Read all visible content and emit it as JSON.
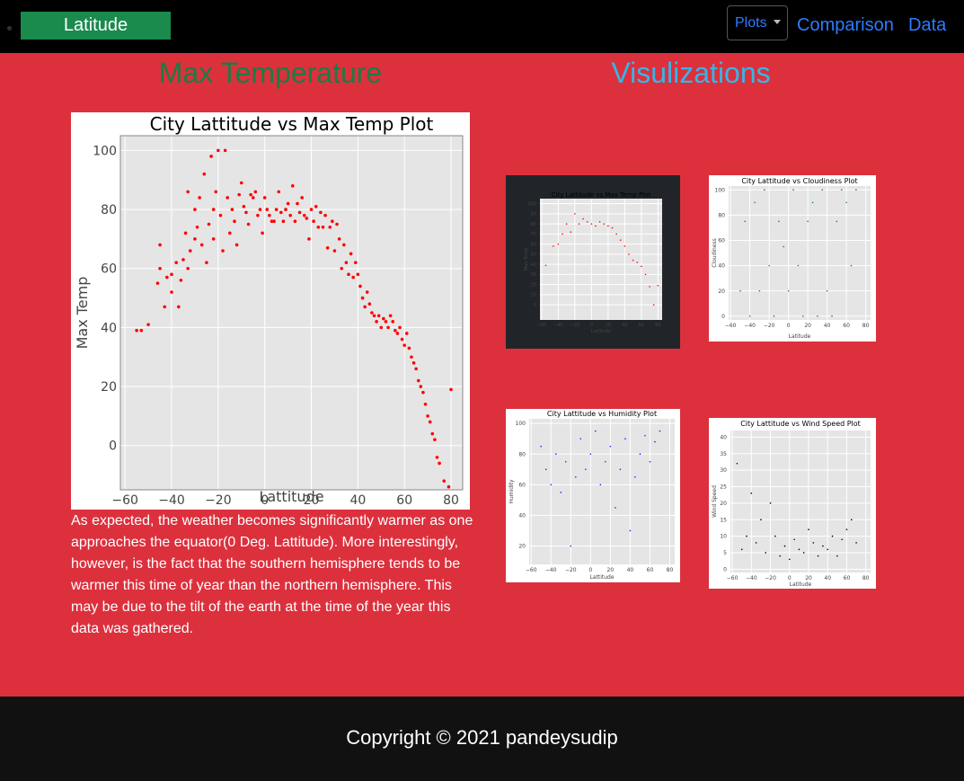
{
  "navbar": {
    "brand": "Latitude",
    "plots_menu": "Plots",
    "links": [
      "Comparison",
      "Data"
    ]
  },
  "main": {
    "heading": "Max Temperature",
    "description": "As expected, the weather becomes significantly warmer as one approaches the equator(0 Deg. Lattitude). More interestingly, however, is the fact that the southern hemisphere tends to be warmer this time of year than the northern hemisphere. This may be due to the tilt of the earth at the time of the year this data was gathered."
  },
  "visualizations": {
    "heading": "Visulizations"
  },
  "footer": {
    "copyright": "Copyright © 2021 pandeysudip"
  },
  "colors": {
    "page_bg": "#dc303d",
    "nav_bg": "#000000",
    "brand_bg": "#1b8a4d",
    "link": "#2c7cff",
    "main_heading": "#1f7a43",
    "viz_heading": "#33b7e8",
    "footer_bg": "#111111"
  },
  "chart_data": [
    {
      "type": "scatter",
      "title": "City Lattitude vs Max Temp Plot",
      "xlabel": "Lattitude",
      "ylabel": "Max Temp",
      "xlim": [
        -62,
        85
      ],
      "ylim": [
        -15,
        105
      ],
      "xticks": [
        -60,
        -40,
        -20,
        0,
        20,
        40,
        60,
        80
      ],
      "yticks": [
        0,
        20,
        40,
        60,
        80,
        100
      ],
      "xtick_labels": [
        "−60",
        "−40",
        "−20",
        "0",
        "20",
        "40",
        "60",
        "80"
      ],
      "ytick_labels": [
        "0",
        "20",
        "40",
        "60",
        "80",
        "100"
      ],
      "grid": true,
      "point_color": "#ff0000",
      "x": [
        -55,
        -53,
        -50,
        -46,
        -45,
        -45,
        -43,
        -42,
        -40,
        -40,
        -38,
        -37,
        -36,
        -35,
        -34,
        -33,
        -33,
        -32,
        -30,
        -30,
        -29,
        -28,
        -27,
        -26,
        -25,
        -24,
        -23,
        -22,
        -22,
        -21,
        -20,
        -19,
        -18,
        -17,
        -16,
        -15,
        -14,
        -13,
        -12,
        -11,
        -10,
        -9,
        -8,
        -7,
        -6,
        -5,
        -4,
        -3,
        -2,
        -1,
        0,
        1,
        2,
        3,
        4,
        5,
        6,
        7,
        8,
        9,
        10,
        11,
        12,
        13,
        14,
        15,
        16,
        17,
        18,
        19,
        20,
        21,
        22,
        23,
        24,
        25,
        26,
        27,
        28,
        29,
        30,
        31,
        32,
        33,
        34,
        35,
        36,
        37,
        38,
        39,
        40,
        41,
        42,
        43,
        44,
        45,
        46,
        47,
        48,
        49,
        50,
        51,
        52,
        53,
        54,
        55,
        56,
        57,
        58,
        59,
        60,
        61,
        62,
        63,
        64,
        65,
        66,
        67,
        68,
        69,
        70,
        71,
        72,
        73,
        74,
        75,
        77,
        79,
        80
      ],
      "y": [
        39,
        39,
        41,
        55,
        60,
        68,
        47,
        57,
        52,
        58,
        62,
        47,
        56,
        63,
        72,
        86,
        60,
        66,
        80,
        70,
        74,
        84,
        68,
        92,
        62,
        75,
        98,
        70,
        80,
        86,
        100,
        78,
        66,
        100,
        84,
        72,
        80,
        76,
        68,
        85,
        89,
        81,
        79,
        75,
        85,
        84,
        86,
        78,
        80,
        72,
        84,
        80,
        78,
        76,
        76,
        80,
        86,
        79,
        76,
        80,
        82,
        78,
        88,
        76,
        82,
        79,
        84,
        78,
        77,
        70,
        80,
        76,
        81,
        74,
        79,
        74,
        78,
        67,
        74,
        76,
        66,
        75,
        70,
        60,
        68,
        62,
        58,
        65,
        57,
        62,
        58,
        54,
        50,
        47,
        52,
        48,
        45,
        44,
        42,
        44,
        40,
        43,
        42,
        40,
        44,
        42,
        39,
        38,
        40,
        36,
        34,
        38,
        33,
        30,
        28,
        26,
        22,
        20,
        18,
        14,
        10,
        8,
        4,
        2,
        -4,
        -6,
        -12,
        -14,
        19
      ],
      "note": "Representative point sample read from the plot"
    },
    {
      "type": "scatter",
      "title": "City Lattitude vs Max Temp Plot",
      "xlabel": "Lattitude",
      "ylabel": "Max Temp",
      "xlim": [
        -62,
        85
      ],
      "ylim": [
        -15,
        105
      ],
      "xticks": [
        -60,
        -40,
        -20,
        0,
        20,
        40,
        60,
        80
      ],
      "yticks": [
        0,
        10,
        20,
        30,
        40,
        50,
        60,
        70,
        80,
        90,
        100
      ],
      "xtick_labels": [
        "−60",
        "−40",
        "−20",
        "0",
        "20",
        "40",
        "60",
        "80"
      ],
      "ytick_labels": [
        "0",
        "10",
        "20",
        "30",
        "40",
        "50",
        "60",
        "70",
        "80",
        "90",
        "100"
      ],
      "point_color": "#ff0000",
      "x": [
        -55,
        -46,
        -40,
        -35,
        -30,
        -25,
        -20,
        -15,
        -10,
        -5,
        0,
        5,
        10,
        15,
        20,
        25,
        30,
        35,
        40,
        45,
        50,
        55,
        60,
        65,
        70,
        75,
        80
      ],
      "y": [
        39,
        58,
        60,
        70,
        80,
        72,
        90,
        80,
        85,
        82,
        80,
        78,
        82,
        80,
        78,
        76,
        70,
        64,
        58,
        50,
        44,
        42,
        38,
        30,
        18,
        0,
        19
      ]
    },
    {
      "type": "scatter",
      "title": "City Lattitude vs Cloudiness Plot",
      "xlabel": "Latitude",
      "ylabel": "Cloudiness",
      "xlim": [
        -62,
        85
      ],
      "ylim": [
        -3,
        103
      ],
      "xticks": [
        -60,
        -40,
        -20,
        0,
        20,
        40,
        60,
        80
      ],
      "yticks": [
        0,
        20,
        40,
        60,
        80,
        100
      ],
      "xtick_labels": [
        "−60",
        "−40",
        "−20",
        "0",
        "20",
        "40",
        "60",
        "80"
      ],
      "ytick_labels": [
        "0",
        "20",
        "40",
        "60",
        "80",
        "100"
      ],
      "point_color": "#1e8c1e",
      "x": [
        -50,
        -45,
        -40,
        -35,
        -30,
        -25,
        -20,
        -15,
        -10,
        -5,
        0,
        5,
        10,
        15,
        20,
        25,
        30,
        35,
        40,
        45,
        50,
        55,
        60,
        65,
        70
      ],
      "y": [
        20,
        75,
        0,
        90,
        20,
        100,
        40,
        0,
        75,
        55,
        20,
        100,
        40,
        0,
        75,
        90,
        0,
        100,
        20,
        0,
        75,
        100,
        90,
        40,
        100
      ]
    },
    {
      "type": "scatter",
      "title": "City Lattitude vs Humidity Plot",
      "xlabel": "Lattitude",
      "ylabel": "Humidity",
      "xlim": [
        -62,
        85
      ],
      "ylim": [
        8,
        103
      ],
      "xticks": [
        -60,
        -40,
        -20,
        0,
        20,
        40,
        60,
        80
      ],
      "yticks": [
        20,
        40,
        60,
        80,
        100
      ],
      "xtick_labels": [
        "−60",
        "−40",
        "−20",
        "0",
        "20",
        "40",
        "60",
        "80"
      ],
      "ytick_labels": [
        "20",
        "40",
        "60",
        "80",
        "100"
      ],
      "point_color": "#2020ff",
      "x": [
        -50,
        -45,
        -40,
        -35,
        -30,
        -25,
        -20,
        -15,
        -10,
        -5,
        0,
        5,
        10,
        15,
        20,
        25,
        30,
        35,
        40,
        45,
        50,
        55,
        60,
        65,
        70
      ],
      "y": [
        85,
        70,
        60,
        80,
        55,
        75,
        20,
        65,
        90,
        70,
        80,
        95,
        60,
        75,
        85,
        45,
        70,
        90,
        30,
        65,
        80,
        92,
        75,
        88,
        95
      ]
    },
    {
      "type": "scatter",
      "title": "City Lattitude vs Wind Speed Plot",
      "xlabel": "Latitude",
      "ylabel": "Wind Speed",
      "xlim": [
        -62,
        85
      ],
      "ylim": [
        -1,
        42
      ],
      "xticks": [
        -60,
        -40,
        -20,
        0,
        20,
        40,
        60,
        80
      ],
      "yticks": [
        0,
        5,
        10,
        15,
        20,
        25,
        30,
        35,
        40
      ],
      "xtick_labels": [
        "−60",
        "−40",
        "−20",
        "0",
        "20",
        "40",
        "60",
        "80"
      ],
      "ytick_labels": [
        "0",
        "5",
        "10",
        "15",
        "20",
        "25",
        "30",
        "35",
        "40"
      ],
      "point_color": "#000000",
      "x": [
        -55,
        -50,
        -45,
        -40,
        -35,
        -30,
        -25,
        -20,
        -15,
        -10,
        -5,
        0,
        5,
        10,
        15,
        20,
        25,
        30,
        35,
        40,
        45,
        50,
        55,
        60,
        65,
        70
      ],
      "y": [
        32,
        6,
        10,
        23,
        8,
        15,
        5,
        20,
        10,
        4,
        7,
        3,
        9,
        6,
        5,
        12,
        8,
        4,
        7,
        6,
        10,
        4,
        9,
        12,
        15,
        8
      ]
    }
  ]
}
